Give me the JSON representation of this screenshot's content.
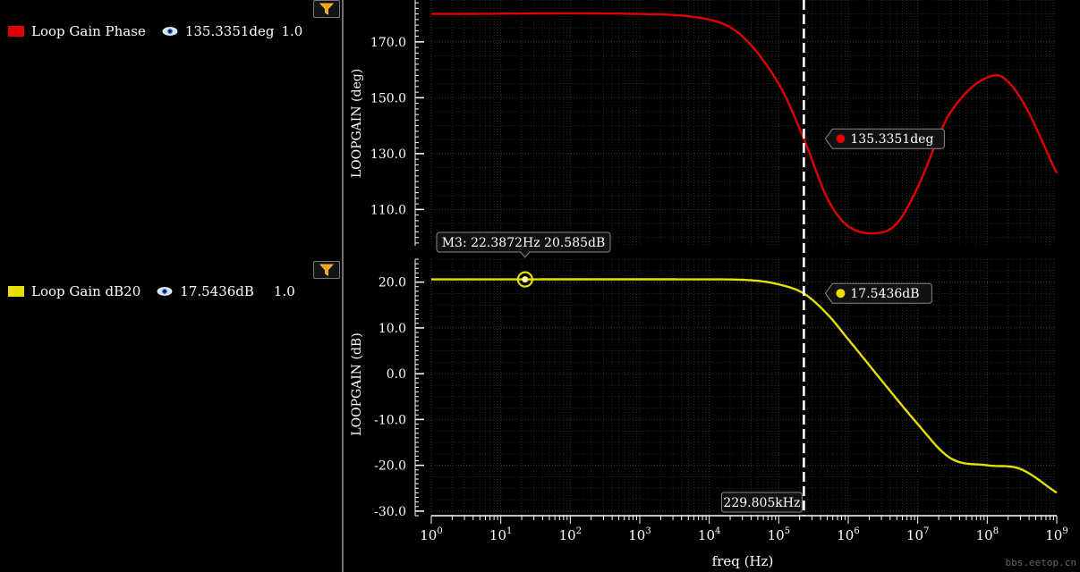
{
  "legend": {
    "phase": {
      "label": "Loop Gain Phase",
      "value": "135.3351deg",
      "scale": "1.0",
      "color": "#e00000"
    },
    "gain": {
      "label": "Loop Gain dB20",
      "value": "17.5436dB",
      "scale": "1.0",
      "color": "#e5e000"
    }
  },
  "watermark": "bbs.eetop.cn",
  "cursor": {
    "label": "229.805kHz",
    "freq_hz": 229805
  },
  "marker_m3": {
    "label": "M3: 22.3872Hz 20.585dB",
    "freq_hz": 22.3872,
    "value_db": 20.585
  },
  "chart_data": [
    {
      "type": "line",
      "ylabel": "LOOPGAIN (deg)",
      "xscale": "log",
      "xlim": [
        1,
        1000000000
      ],
      "ylim": [
        97,
        185
      ],
      "yticks": [
        "170.0",
        "150.0",
        "130.0",
        "110.0"
      ],
      "series": [
        {
          "name": "Loop Gain Phase",
          "color": "#e00000",
          "x": [
            1,
            1000,
            10000,
            30000,
            100000,
            229805,
            500000,
            1000000,
            2500000,
            5000000,
            10000000,
            30000000,
            125000000,
            300000000,
            1000000000
          ],
          "y": [
            180,
            180,
            178,
            172,
            155,
            135.3,
            114,
            104,
            101.5,
            105,
            118,
            145,
            158,
            150,
            123
          ]
        }
      ],
      "cursor_label": "135.3351deg",
      "cursor_value": 135.3351
    },
    {
      "type": "line",
      "ylabel": "LOOPGAIN (dB)",
      "xlabel": "freq (Hz)",
      "xscale": "log",
      "xlim": [
        1,
        1000000000
      ],
      "ylim": [
        -31,
        25
      ],
      "yticks": [
        "20.0",
        "10.0",
        "0.0",
        "-10.0",
        "-20.0",
        "-30.0"
      ],
      "xticks": [
        {
          "base": "10",
          "exp": "0"
        },
        {
          "base": "10",
          "exp": "1"
        },
        {
          "base": "10",
          "exp": "2"
        },
        {
          "base": "10",
          "exp": "3"
        },
        {
          "base": "10",
          "exp": "4"
        },
        {
          "base": "10",
          "exp": "5"
        },
        {
          "base": "10",
          "exp": "6"
        },
        {
          "base": "10",
          "exp": "7"
        },
        {
          "base": "10",
          "exp": "8"
        },
        {
          "base": "10",
          "exp": "9"
        }
      ],
      "series": [
        {
          "name": "Loop Gain dB20",
          "color": "#e5e000",
          "x": [
            1,
            10000,
            40000,
            100000,
            229805,
            500000,
            1000000,
            10000000,
            30000000,
            100000000,
            300000000,
            1000000000
          ],
          "y": [
            20.585,
            20.585,
            20.4,
            19.5,
            17.5,
            13,
            7.5,
            -11,
            -18.5,
            -20,
            -20.8,
            -26
          ]
        }
      ],
      "cursor_label": "17.5436dB",
      "cursor_value": 17.5436
    }
  ]
}
